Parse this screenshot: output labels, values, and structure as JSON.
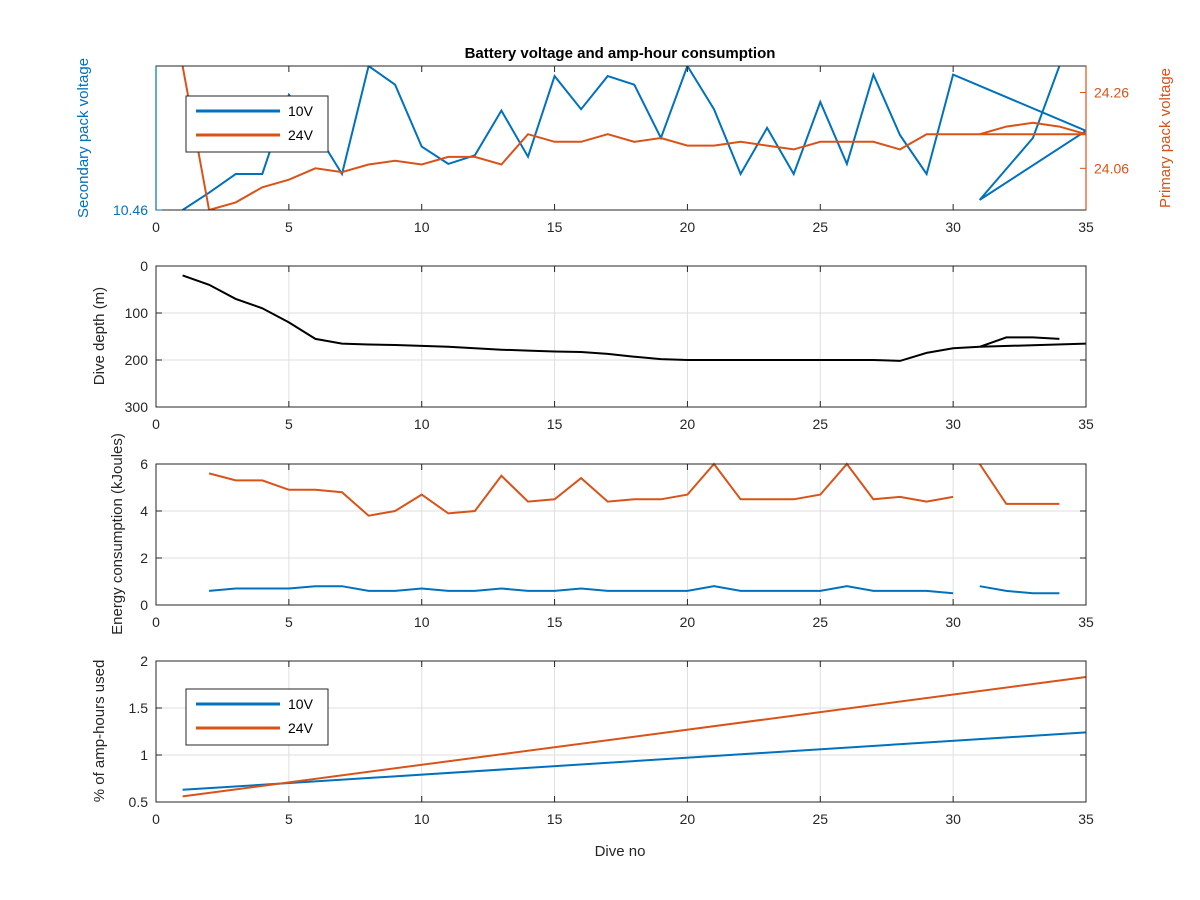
{
  "figure": {
    "title": "Battery voltage and amp-hour consumption",
    "xlabel": "Dive no"
  },
  "colors": {
    "v10": "#0072BD",
    "v24": "#D95319",
    "depth": "#000000",
    "grid": "#DFDFDF",
    "axis": "#262626"
  },
  "chart_data": [
    {
      "type": "line",
      "name": "voltage",
      "title": "Battery voltage and amp-hour consumption",
      "xlim": [
        0,
        35
      ],
      "xticks": [
        0,
        5,
        10,
        15,
        20,
        25,
        30,
        35
      ],
      "grid": false,
      "legend": {
        "placement": "top-left",
        "entries": [
          "10V",
          "24V"
        ]
      },
      "left_axis": {
        "label": "Secondary pack voltage",
        "color": "#0072BD",
        "lim": [
          0,
          100
        ],
        "ticks": [
          0
        ],
        "tick_labels": [
          "10.46"
        ]
      },
      "right_axis": {
        "label": "Primary pack voltage",
        "color": "#D95319",
        "lim": [
          23.95,
          24.33
        ],
        "ticks": [
          24.06,
          24.26
        ],
        "tick_labels": [
          "24.06",
          "24.26"
        ]
      },
      "series": [
        {
          "name": "10V",
          "axis": "left",
          "x": [
            1,
            2,
            3,
            4,
            5,
            6,
            7,
            8,
            9,
            10,
            11,
            12,
            13,
            14,
            15,
            16,
            17,
            18,
            19,
            20,
            21,
            22,
            23,
            24,
            25,
            26,
            27,
            28,
            29,
            30,
            35,
            31,
            33,
            34
          ],
          "y": [
            0,
            12,
            25,
            25,
            80,
            55,
            25,
            100,
            87,
            44,
            32,
            38,
            69,
            37,
            93,
            70,
            93,
            87,
            50,
            100,
            70,
            25,
            57,
            25,
            75,
            32,
            94,
            52,
            25,
            94,
            55,
            7,
            50,
            100
          ]
        },
        {
          "name": "24V",
          "axis": "right",
          "x": [
            1,
            2,
            3,
            4,
            5,
            6,
            7,
            8,
            9,
            10,
            11,
            12,
            13,
            14,
            15,
            16,
            17,
            18,
            19,
            20,
            21,
            22,
            23,
            24,
            25,
            26,
            27,
            28,
            29,
            30,
            31,
            32,
            33,
            34,
            35,
            31,
            34,
            35
          ],
          "y": [
            24.33,
            23.95,
            23.97,
            24.01,
            24.03,
            24.06,
            24.05,
            24.07,
            24.08,
            24.07,
            24.09,
            24.09,
            24.07,
            24.15,
            24.13,
            24.13,
            24.15,
            24.13,
            24.14,
            24.12,
            24.12,
            24.13,
            24.12,
            24.11,
            24.13,
            24.13,
            24.13,
            24.11,
            24.15,
            24.15,
            24.15,
            24.17,
            24.18,
            24.17,
            24.15,
            24.15,
            24.15,
            24.15
          ]
        }
      ]
    },
    {
      "type": "line",
      "name": "depth",
      "xlim": [
        0,
        35
      ],
      "ylim": [
        0,
        300
      ],
      "y_reversed": true,
      "xticks": [
        0,
        5,
        10,
        15,
        20,
        25,
        30,
        35
      ],
      "yticks": [
        0,
        100,
        200,
        300
      ],
      "ylabel": "Dive depth (m)",
      "grid": true,
      "series": [
        {
          "x": [
            1,
            2,
            3,
            4,
            5,
            6,
            7,
            8,
            9,
            10,
            11,
            12,
            13,
            14,
            15,
            16,
            17,
            18,
            19,
            20,
            21,
            22,
            23,
            24,
            25,
            26,
            27,
            28,
            29,
            30,
            31,
            35,
            31,
            32,
            33,
            34
          ],
          "y": [
            20,
            40,
            70,
            90,
            120,
            155,
            165,
            167,
            168,
            170,
            172,
            175,
            178,
            180,
            182,
            183,
            187,
            193,
            198,
            200,
            200,
            200,
            200,
            200,
            200,
            200,
            200,
            202,
            185,
            175,
            172,
            165,
            172,
            152,
            152,
            155
          ]
        }
      ]
    },
    {
      "type": "line",
      "name": "energy",
      "xlim": [
        0,
        35
      ],
      "ylim": [
        0,
        6
      ],
      "xticks": [
        0,
        5,
        10,
        15,
        20,
        25,
        30,
        35
      ],
      "yticks": [
        0,
        2,
        4,
        6
      ],
      "ylabel": "Energy consumption (kJoules)",
      "grid": true,
      "series": [
        {
          "name": "24V",
          "segments": [
            {
              "x": [
                2,
                3,
                4,
                5,
                6,
                7,
                8,
                9,
                10,
                11,
                12,
                13,
                14,
                15,
                16,
                17,
                18,
                19,
                20,
                21,
                22,
                23,
                24,
                25,
                26,
                27,
                28,
                29,
                30
              ],
              "y": [
                5.6,
                5.3,
                5.3,
                4.9,
                4.9,
                4.8,
                3.8,
                4.0,
                4.7,
                3.9,
                4.0,
                5.5,
                4.4,
                4.5,
                5.4,
                4.4,
                4.5,
                4.5,
                4.7,
                6.0,
                4.5,
                4.5,
                4.5,
                4.7,
                6.0,
                4.5,
                4.6,
                4.4,
                4.6
              ]
            },
            {
              "x": [
                31,
                32,
                33,
                34
              ],
              "y": [
                6.0,
                4.3,
                4.3,
                4.3
              ]
            }
          ]
        },
        {
          "name": "10V",
          "segments": [
            {
              "x": [
                2,
                3,
                4,
                5,
                6,
                7,
                8,
                9,
                10,
                11,
                12,
                13,
                14,
                15,
                16,
                17,
                18,
                19,
                20,
                21,
                22,
                23,
                24,
                25,
                26,
                27,
                28,
                29,
                30
              ],
              "y": [
                0.6,
                0.7,
                0.7,
                0.7,
                0.8,
                0.8,
                0.6,
                0.6,
                0.7,
                0.6,
                0.6,
                0.7,
                0.6,
                0.6,
                0.7,
                0.6,
                0.6,
                0.6,
                0.6,
                0.8,
                0.6,
                0.6,
                0.6,
                0.6,
                0.8,
                0.6,
                0.6,
                0.6,
                0.5
              ]
            },
            {
              "x": [
                31,
                32,
                33,
                34
              ],
              "y": [
                0.8,
                0.6,
                0.5,
                0.5
              ]
            }
          ]
        }
      ]
    },
    {
      "type": "line",
      "name": "amp-hours",
      "xlim": [
        0,
        35
      ],
      "ylim": [
        0.5,
        2
      ],
      "xticks": [
        0,
        5,
        10,
        15,
        20,
        25,
        30,
        35
      ],
      "yticks": [
        0.5,
        1,
        1.5,
        2
      ],
      "ylabel": "% of amp-hours used",
      "xlabel": "Dive no",
      "grid": true,
      "legend": {
        "placement": "top-left",
        "entries": [
          "10V",
          "24V"
        ]
      },
      "series": [
        {
          "name": "10V",
          "x": [
            1,
            35
          ],
          "y": [
            0.63,
            1.24
          ]
        },
        {
          "name": "24V",
          "x": [
            1,
            35
          ],
          "y": [
            0.56,
            1.83
          ]
        }
      ]
    }
  ]
}
